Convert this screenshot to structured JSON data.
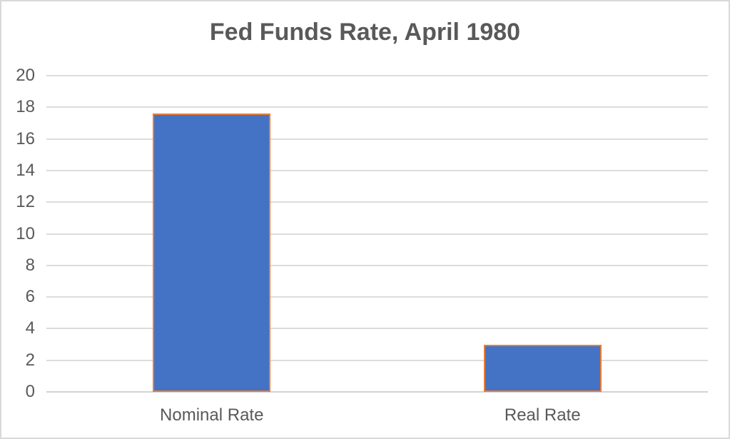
{
  "chart_data": {
    "type": "bar",
    "title": "Fed Funds Rate, April 1980",
    "categories": [
      "Nominal Rate",
      "Real Rate"
    ],
    "values": [
      17.6,
      3
    ],
    "xlabel": "",
    "ylabel": "",
    "ylim": [
      0,
      20
    ],
    "ytick_step": 2,
    "ytick_labels": [
      "0",
      "2",
      "4",
      "6",
      "8",
      "10",
      "12",
      "14",
      "16",
      "18",
      "20"
    ],
    "grid": true,
    "legend": false,
    "colors": {
      "bar_fill": "#4472c4",
      "bar_border": "#ed7d31",
      "title_text": "#595959",
      "axis_text": "#595959",
      "gridline": "#dcdcdc",
      "axis_line": "#d2d2d2",
      "chart_border": "#d9d9d9",
      "background": "#ffffff"
    }
  }
}
